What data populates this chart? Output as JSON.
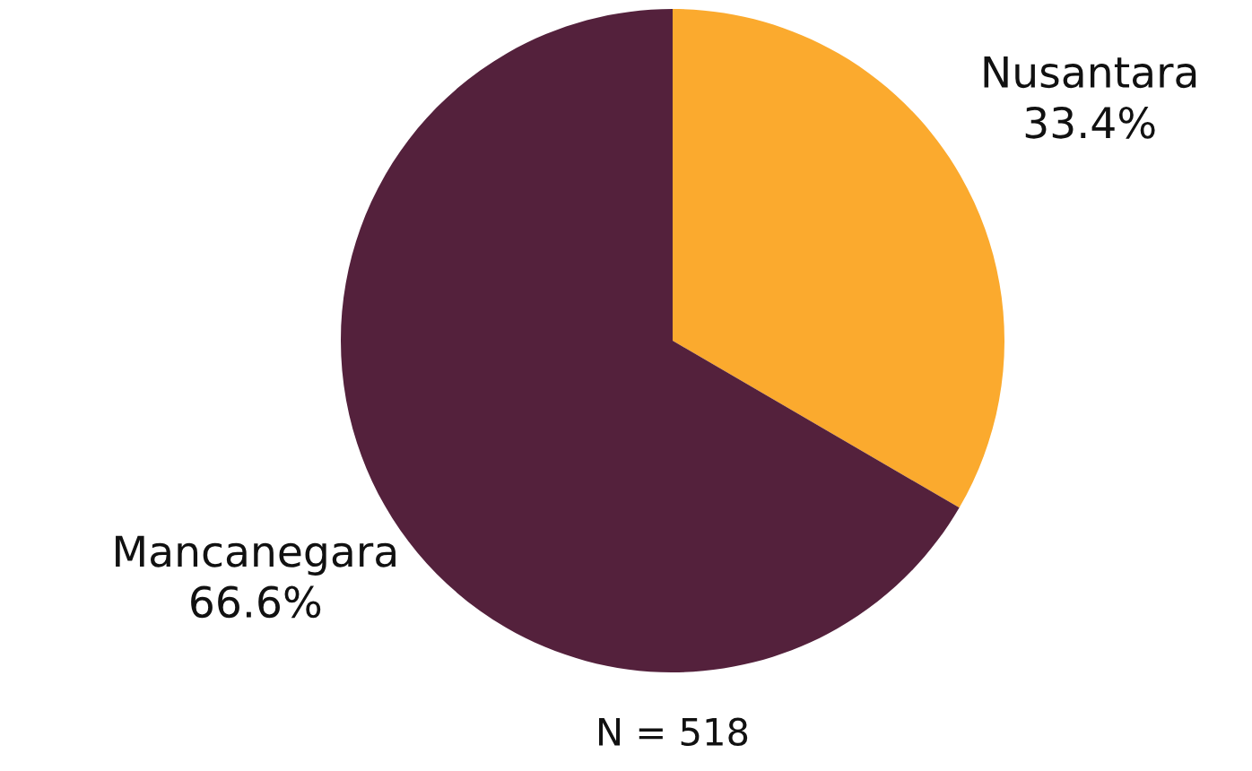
{
  "chart_data": {
    "type": "pie",
    "categories": [
      "Nusantara",
      "Mancanegara"
    ],
    "values": [
      33.4,
      66.6
    ],
    "colors": [
      "#fbaa2e",
      "#54213c"
    ],
    "value_labels": [
      "33.4%",
      "66.6%"
    ],
    "annotations": [
      "N = 518"
    ]
  }
}
